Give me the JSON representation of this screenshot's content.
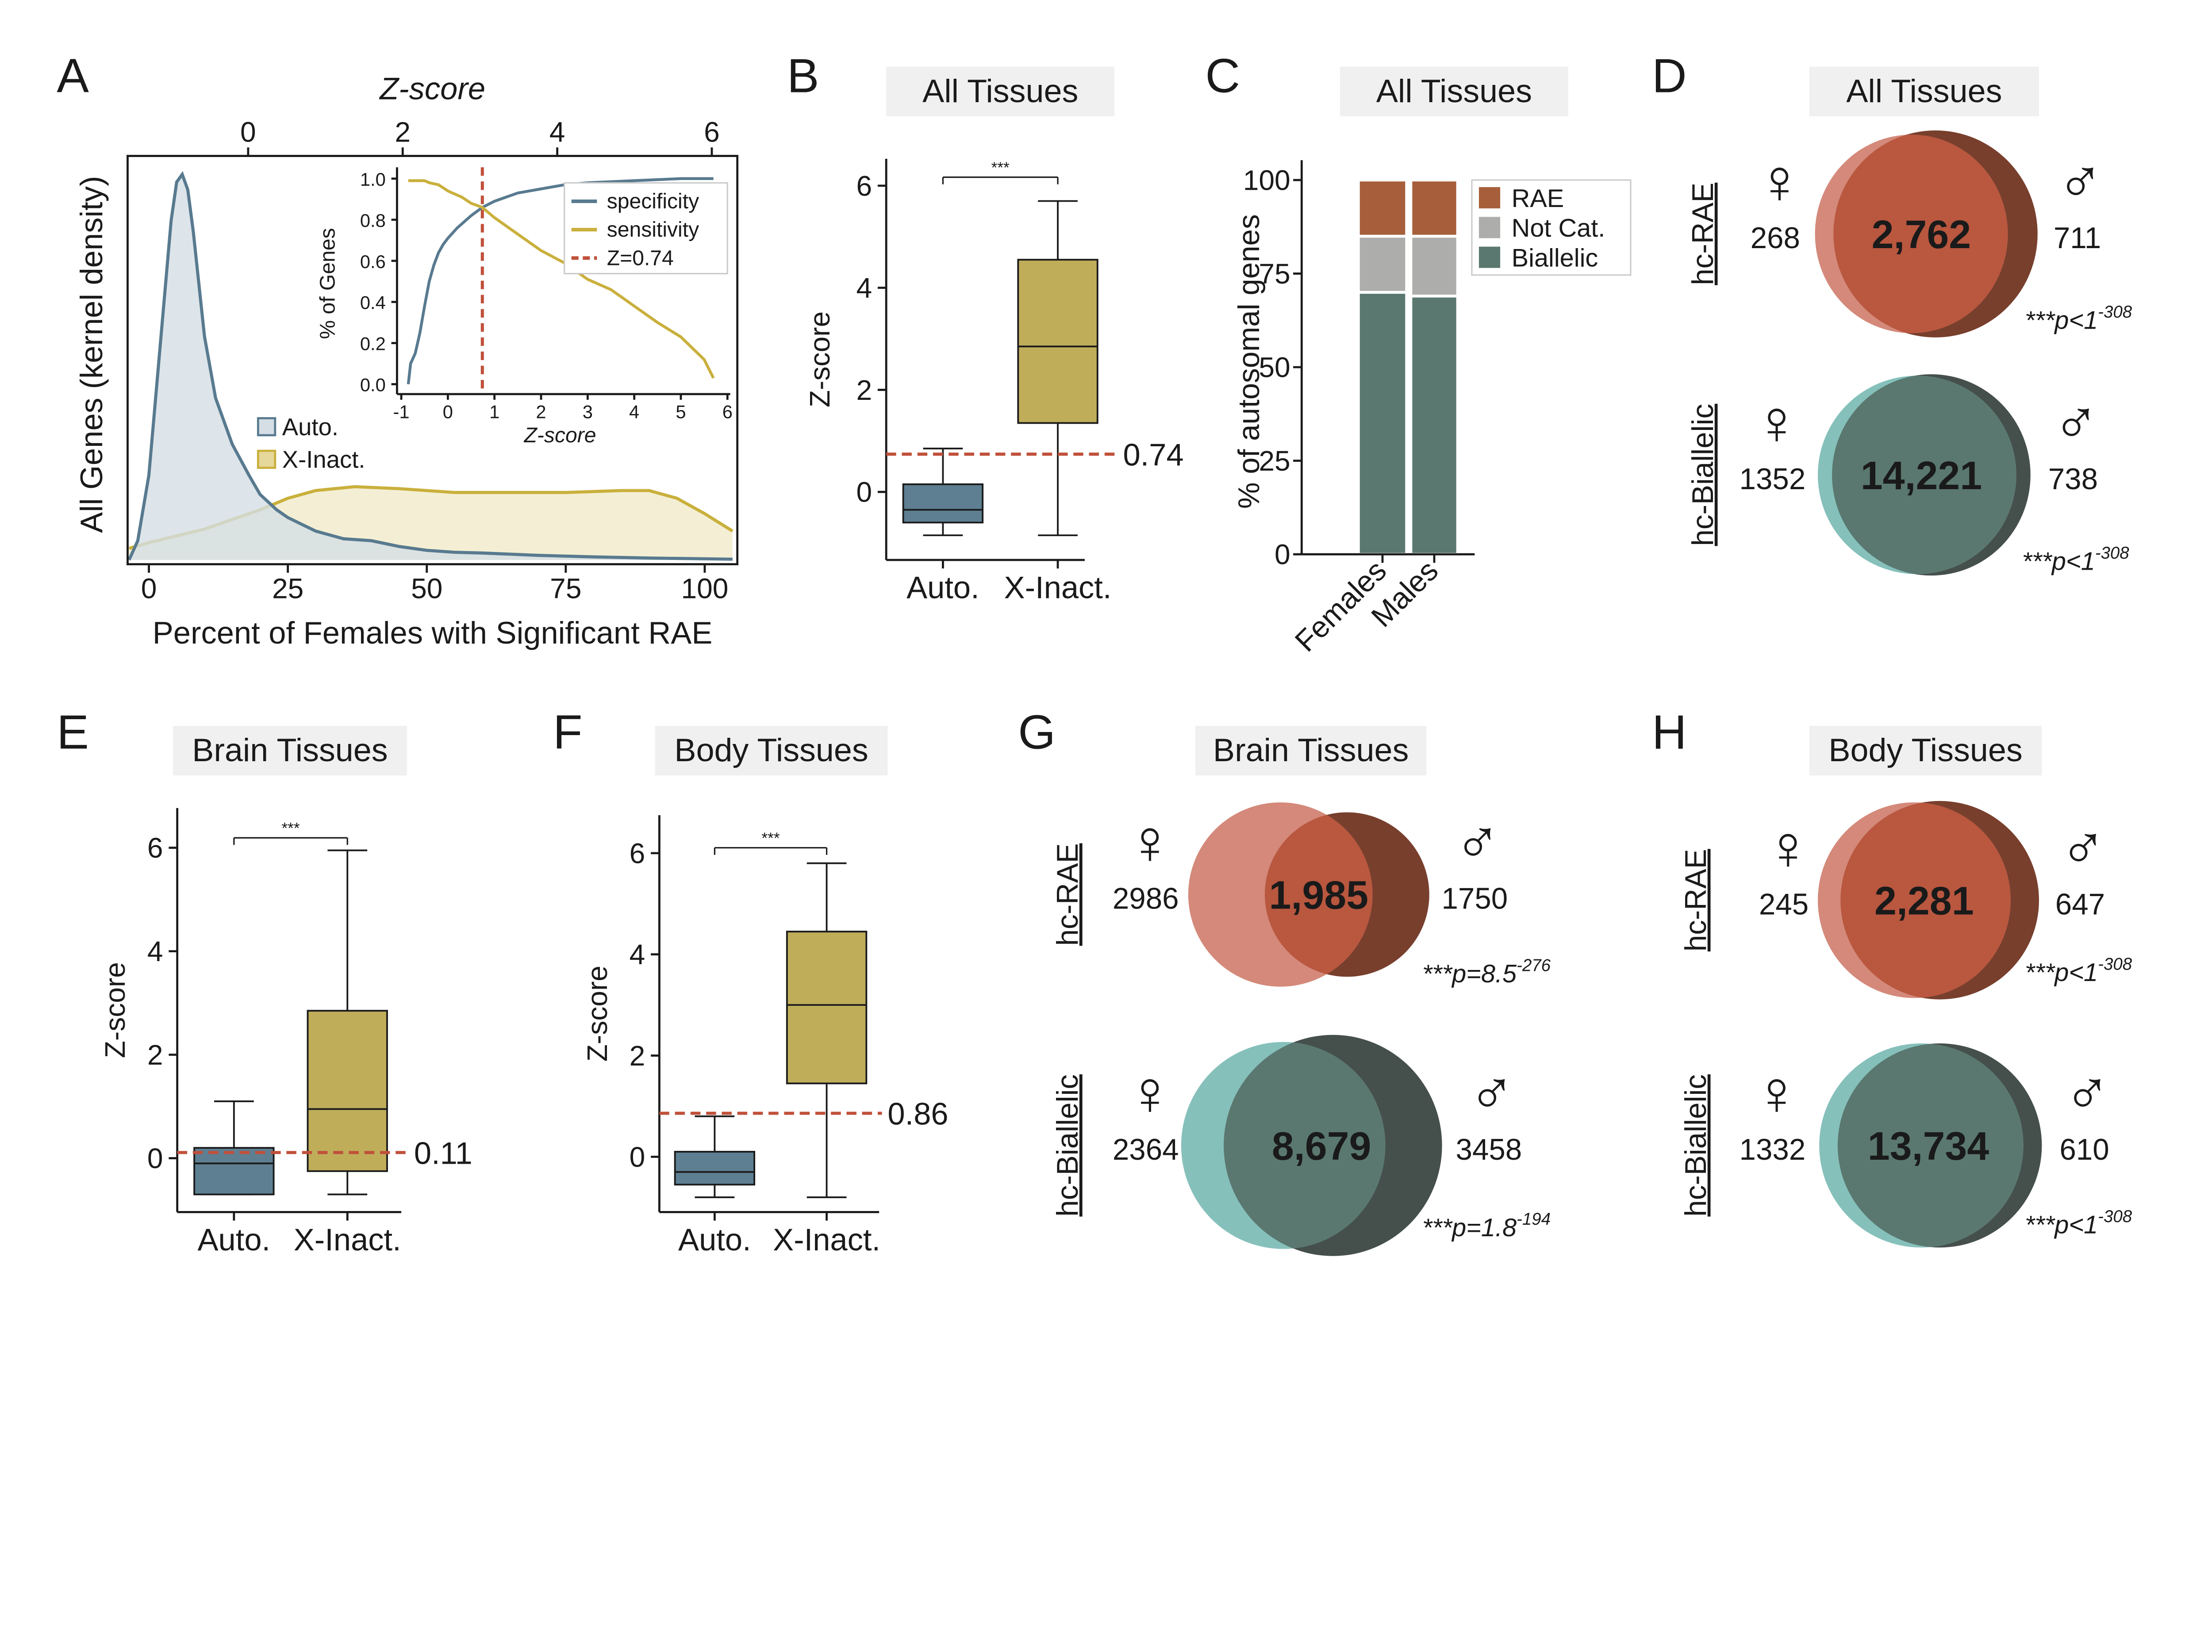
{
  "icons": {
    "female": "♀",
    "male": "♂"
  },
  "colors": {
    "auto": "#587a8f",
    "auto_fill": "#d5dee5",
    "xinact": "#c9b03c",
    "xinact_fill": "#f1ebc9",
    "threshold": "#c0503a",
    "box_auto": "#5e7f92",
    "box_xinact": "#bfad5a",
    "rae": "#a65f3a",
    "notcat": "#adadab",
    "biallelic": "#5a7870",
    "rae_female": "#d4897a",
    "rae_overlap": "#b9573f",
    "rae_male": "#783f2d",
    "bi_female": "#86c0bb",
    "bi_overlap": "#5a7870",
    "bi_male": "#454f4b",
    "title_bg": "#f0f0f0"
  },
  "panel_letters": [
    "A",
    "B",
    "C",
    "D",
    "E",
    "F",
    "G",
    "H"
  ],
  "chart_data": [
    {
      "panel": "A",
      "type": "area",
      "xlabel": "Percent of Females with Significant RAE",
      "ylabel": "All Genes (kernel density)",
      "top_xlabel": "Z-score",
      "xticks": [
        "0",
        "25",
        "50",
        "75",
        "100"
      ],
      "top_xticks": [
        "0",
        "2",
        "4",
        "6"
      ],
      "xlim": [
        -5,
        105
      ],
      "series": [
        {
          "name": "Auto.",
          "x": [
            -4,
            -2,
            0,
            2,
            4,
            5,
            6,
            7,
            8,
            10,
            12,
            15,
            18,
            20,
            23,
            25,
            30,
            35,
            40,
            45,
            50,
            55,
            60,
            70,
            80,
            90,
            100,
            105
          ],
          "y": [
            0,
            0.05,
            0.22,
            0.55,
            0.88,
            0.98,
            1.0,
            0.96,
            0.85,
            0.58,
            0.42,
            0.3,
            0.22,
            0.17,
            0.13,
            0.11,
            0.075,
            0.055,
            0.05,
            0.035,
            0.025,
            0.02,
            0.018,
            0.012,
            0.008,
            0.005,
            0.003,
            0.002
          ]
        },
        {
          "name": "X-Inact.",
          "x": [
            -5,
            0,
            10,
            20,
            25,
            30,
            37,
            45,
            55,
            65,
            75,
            85,
            90,
            95,
            100,
            105
          ],
          "y": [
            0.03,
            0.045,
            0.08,
            0.13,
            0.16,
            0.18,
            0.19,
            0.185,
            0.175,
            0.175,
            0.175,
            0.18,
            0.18,
            0.16,
            0.12,
            0.075
          ]
        }
      ],
      "inset": {
        "type": "line",
        "xlabel": "Z-score",
        "ylabel": "% of Genes",
        "xticks": [
          "-1",
          "0",
          "1",
          "2",
          "3",
          "4",
          "5",
          "6"
        ],
        "yticks": [
          "0.0",
          "0.2",
          "0.4",
          "0.6",
          "0.8",
          "1.0"
        ],
        "series": [
          {
            "name": "specificity",
            "x": [
              -0.85,
              -0.8,
              -0.7,
              -0.6,
              -0.5,
              -0.4,
              -0.3,
              -0.2,
              -0.1,
              0,
              0.2,
              0.5,
              0.74,
              1,
              1.5,
              2,
              2.5,
              3,
              4,
              5,
              5.7
            ],
            "y": [
              0,
              0.1,
              0.15,
              0.25,
              0.38,
              0.5,
              0.58,
              0.64,
              0.68,
              0.71,
              0.76,
              0.82,
              0.86,
              0.89,
              0.93,
              0.95,
              0.97,
              0.98,
              0.99,
              1.0,
              1.0
            ]
          },
          {
            "name": "sensitivity",
            "x": [
              -0.85,
              -0.5,
              -0.4,
              -0.2,
              0,
              0.3,
              0.5,
              0.74,
              1,
              1.5,
              2,
              2.5,
              3,
              3.5,
              4,
              4.5,
              5,
              5.5,
              5.7
            ],
            "y": [
              0.99,
              0.99,
              0.98,
              0.97,
              0.94,
              0.91,
              0.88,
              0.86,
              0.81,
              0.73,
              0.65,
              0.59,
              0.51,
              0.46,
              0.38,
              0.3,
              0.23,
              0.12,
              0.03
            ]
          }
        ],
        "threshold": {
          "name": "Z=0.74",
          "value": 0.74
        }
      }
    },
    {
      "panel": "B",
      "type": "box",
      "title": "All Tissues",
      "ylabel": "Z-score",
      "categories": [
        "Auto.",
        "X-Inact."
      ],
      "yticks": [
        "0",
        "2",
        "4",
        "6"
      ],
      "boxes": [
        {
          "min": -0.85,
          "q1": -0.6,
          "median": -0.35,
          "q3": 0.15,
          "max": 0.85
        },
        {
          "min": -0.85,
          "q1": 1.35,
          "median": 2.85,
          "q3": 4.55,
          "max": 5.7
        }
      ],
      "threshold": 0.74,
      "threshold_label": "0.74",
      "significance": "***"
    },
    {
      "panel": "C",
      "type": "bar",
      "stacked": true,
      "title": "All Tissues",
      "ylabel": "% of autosomal genes",
      "yticks": [
        "0",
        "25",
        "50",
        "75",
        "100"
      ],
      "ylim": [
        0,
        100
      ],
      "categories": [
        "Females",
        "Males"
      ],
      "series": [
        {
          "name": "Biallelic",
          "values": [
            70,
            69
          ]
        },
        {
          "name": "Not Cat.",
          "values": [
            15,
            16
          ]
        },
        {
          "name": "RAE",
          "values": [
            15,
            15
          ]
        }
      ],
      "legend": [
        "RAE",
        "Not Cat.",
        "Biallelic"
      ]
    },
    {
      "panel": "D",
      "type": "venn",
      "title": "All Tissues",
      "rows": [
        {
          "label": "hc-RAE",
          "female": "268",
          "overlap": "2,762",
          "male": "711",
          "p": "***p<1",
          "p_exp": "-308"
        },
        {
          "label": "hc-Biallelic",
          "female": "1352",
          "overlap": "14,221",
          "male": "738",
          "p": "***p<1",
          "p_exp": "-308"
        }
      ]
    },
    {
      "panel": "E",
      "type": "box",
      "title": "Brain Tissues",
      "ylabel": "Z-score",
      "categories": [
        "Auto.",
        "X-Inact."
      ],
      "yticks": [
        "0",
        "2",
        "4",
        "6"
      ],
      "boxes": [
        {
          "min": -0.7,
          "q1": -0.7,
          "median": -0.1,
          "q3": 0.2,
          "max": 1.1
        },
        {
          "min": -0.7,
          "q1": -0.25,
          "median": 0.95,
          "q3": 2.85,
          "max": 5.95
        }
      ],
      "threshold": 0.11,
      "threshold_label": "0.11",
      "significance": "***"
    },
    {
      "panel": "F",
      "type": "box",
      "title": "Body Tissues",
      "ylabel": "Z-score",
      "categories": [
        "Auto.",
        "X-Inact."
      ],
      "yticks": [
        "0",
        "2",
        "4",
        "6"
      ],
      "boxes": [
        {
          "min": -0.8,
          "q1": -0.55,
          "median": -0.3,
          "q3": 0.1,
          "max": 0.8
        },
        {
          "min": -0.8,
          "q1": 1.45,
          "median": 3.0,
          "q3": 4.45,
          "max": 5.8
        }
      ],
      "threshold": 0.86,
      "threshold_label": "0.86",
      "significance": "***"
    },
    {
      "panel": "G",
      "type": "venn",
      "title": "Brain Tissues",
      "rows": [
        {
          "label": "hc-RAE",
          "female": "2986",
          "overlap": "1,985",
          "male": "1750",
          "p": "***p=8.5",
          "p_exp": "-276"
        },
        {
          "label": "hc-Biallelic",
          "female": "2364",
          "overlap": "8,679",
          "male": "3458",
          "p": "***p=1.8",
          "p_exp": "-194"
        }
      ]
    },
    {
      "panel": "H",
      "type": "venn",
      "title": "Body Tissues",
      "rows": [
        {
          "label": "hc-RAE",
          "female": "245",
          "overlap": "2,281",
          "male": "647",
          "p": "***p<1",
          "p_exp": "-308"
        },
        {
          "label": "hc-Biallelic",
          "female": "1332",
          "overlap": "13,734",
          "male": "610",
          "p": "***p<1",
          "p_exp": "-308"
        }
      ]
    }
  ]
}
